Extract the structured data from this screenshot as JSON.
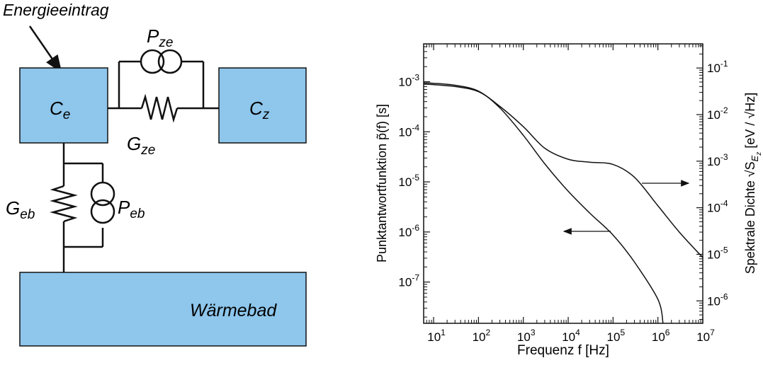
{
  "diagram": {
    "energy_input": "Energieeintrag",
    "ce": {
      "main": "C",
      "sub": "e"
    },
    "cz": {
      "main": "C",
      "sub": "z"
    },
    "pze": {
      "main": "P",
      "sub": "ze"
    },
    "gze": {
      "main": "G",
      "sub": "ze"
    },
    "geb": {
      "main": "G",
      "sub": "eb"
    },
    "peb": {
      "main": "P",
      "sub": "eb"
    },
    "bath": "Wärmebad",
    "box_color": "#8ec6ec"
  },
  "chart_data": {
    "type": "line",
    "xlabel": "Frequenz  f [Hz]",
    "ylabel_left": "Punktantwortfunktion  p̃(f)  [s]",
    "ylabel_right_prefix": "Spektrale Dichte  √S",
    "ylabel_right_sub": "E",
    "ylabel_right_subsub": "z",
    "ylabel_right_suffix": " [eV / √Hz]",
    "x_scale": "log",
    "xlim": [
      6,
      10000000
    ],
    "x_ticks": [
      {
        "value": 10,
        "base": "10",
        "exp": "1"
      },
      {
        "value": 100,
        "base": "10",
        "exp": "2"
      },
      {
        "value": 1000,
        "base": "10",
        "exp": "3"
      },
      {
        "value": 10000,
        "base": "10",
        "exp": "4"
      },
      {
        "value": 100000,
        "base": "10",
        "exp": "5"
      },
      {
        "value": 1000000,
        "base": "10",
        "exp": "6"
      },
      {
        "value": 10000000,
        "base": "10",
        "exp": "7"
      }
    ],
    "left_axis": {
      "scale": "log",
      "range": [
        1.5e-08,
        0.0057
      ],
      "ticks": [
        {
          "value": 0.001,
          "base": "10",
          "exp": "-3"
        },
        {
          "value": 0.0001,
          "base": "10",
          "exp": "-4"
        },
        {
          "value": 1e-05,
          "base": "10",
          "exp": "-5"
        },
        {
          "value": 1e-06,
          "base": "10",
          "exp": "-6"
        },
        {
          "value": 1e-07,
          "base": "10",
          "exp": "-7"
        }
      ]
    },
    "right_axis": {
      "scale": "log",
      "range": [
        3.3e-07,
        0.33
      ],
      "ticks": [
        {
          "value": 0.1,
          "base": "10",
          "exp": "-1"
        },
        {
          "value": 0.01,
          "base": "10",
          "exp": "-2"
        },
        {
          "value": 0.001,
          "base": "10",
          "exp": "-3"
        },
        {
          "value": 0.0001,
          "base": "10",
          "exp": "-4"
        },
        {
          "value": 1e-05,
          "base": "10",
          "exp": "-5"
        },
        {
          "value": 1e-06,
          "base": "10",
          "exp": "-6"
        }
      ]
    },
    "series": [
      {
        "axis": "left",
        "points": [
          [
            6,
            0.00095
          ],
          [
            10,
            0.00093
          ],
          [
            30,
            0.00085
          ],
          [
            100,
            0.00065
          ],
          [
            300,
            0.0003
          ],
          [
            1000,
            8.5e-05
          ],
          [
            3000,
            2.3e-05
          ],
          [
            10000,
            6.5e-06
          ],
          [
            30000,
            2.4e-06
          ],
          [
            100000,
            8.7e-07
          ],
          [
            300000,
            2.5e-07
          ],
          [
            1000000,
            4.5e-08
          ],
          [
            1300000,
            1.5e-08
          ]
        ]
      },
      {
        "axis": "right",
        "points": [
          [
            6,
            0.045
          ],
          [
            10,
            0.044
          ],
          [
            30,
            0.04
          ],
          [
            100,
            0.031
          ],
          [
            300,
            0.015
          ],
          [
            1000,
            0.0055
          ],
          [
            3000,
            0.0019
          ],
          [
            10000,
            0.0011
          ],
          [
            30000,
            0.00095
          ],
          [
            100000,
            0.00085
          ],
          [
            300000,
            0.00045
          ],
          [
            1000000,
            0.00011
          ],
          [
            3000000,
            3e-05
          ],
          [
            10000000,
            8.5e-06
          ]
        ]
      }
    ],
    "arrows": [
      {
        "direction": "right",
        "points_to": "right axis"
      },
      {
        "direction": "left",
        "points_to": "left axis"
      }
    ]
  }
}
